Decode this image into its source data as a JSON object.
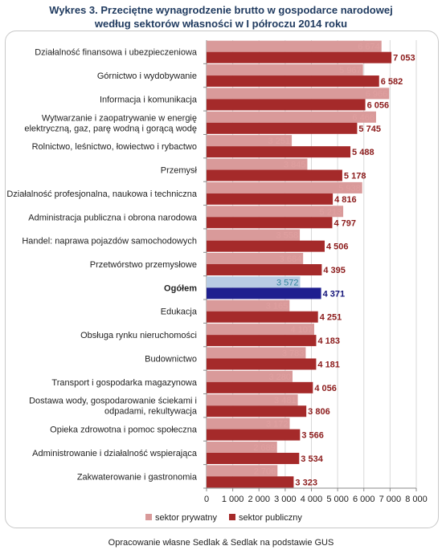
{
  "title": {
    "line1": "Wykres 3. Przeciętne wynagrodzenie brutto w gospodarce narodowej",
    "line2": "według sektorów własności w I półroczu 2014 roku"
  },
  "footer": "Opracowanie własne Sedlak & Sedlak na podstawie GUS",
  "colors": {
    "private": "#d99a9a",
    "public": "#a52a2a",
    "total_private": "#b8cce4",
    "total_public": "#1f1f8f",
    "private_label": "#e0a0a0",
    "public_label": "#8b1a1a",
    "total_private_label": "#31849b",
    "total_public_label": "#14147a"
  },
  "chart_data": {
    "type": "bar",
    "orientation": "horizontal",
    "grid": true,
    "legend_position": "bottom",
    "xlim": [
      0,
      8000
    ],
    "xticks": [
      0,
      1000,
      2000,
      3000,
      4000,
      5000,
      6000,
      7000,
      8000
    ],
    "xtick_labels": [
      "0",
      "1 000",
      "2 000",
      "3 000",
      "4 000",
      "5 000",
      "6 000",
      "7 000",
      "8 000"
    ],
    "categories": [
      [
        "Działalność finansowa i ubezpieczeniowa"
      ],
      [
        "Górnictwo i wydobywanie"
      ],
      [
        "Informacja i komunikacja"
      ],
      [
        "Wytwarzanie i zaopatrywanie w energię",
        "elektryczną, gaz, parę wodną i gorącą wodę"
      ],
      [
        "Rolnictwo, leśnictwo, łowiectwo i rybactwo"
      ],
      [
        "Przemysł"
      ],
      [
        "Działalność profesjonalna, naukowa i techniczna"
      ],
      [
        "Administracja publiczna i obrona narodowa"
      ],
      [
        "Handel: naprawa pojazdów samochodowych"
      ],
      [
        "Przetwórstwo przemysłowe"
      ],
      [
        "Ogółem"
      ],
      [
        "Edukacja"
      ],
      [
        "Obsługa rynku nieruchomości"
      ],
      [
        "Budownictwo"
      ],
      [
        "Transport i gospodarka magazynowa"
      ],
      [
        "Dostawa wody, gospodarowanie ściekami i",
        "odpadami, rekultywacja"
      ],
      [
        "Opieka zdrowotna i pomoc społeczna"
      ],
      [
        "Administrowanie i działalność wspierająca"
      ],
      [
        "Zakwaterowanie i gastronomia"
      ]
    ],
    "highlight_category_index": 10,
    "series": [
      {
        "name": "sektor prywatny",
        "values": [
          6674,
          5967,
          6966,
          6466,
          3251,
          3845,
          5938,
          5213,
          3558,
          3684,
          3572,
          3165,
          4107,
          3783,
          3280,
          3481,
          3172,
          2689,
          2706
        ],
        "labels": [
          "6 674",
          "5 967",
          "6 966",
          "6 466",
          "3 251",
          "3 845",
          "5 938",
          "5 213",
          "3 558",
          "3 684",
          "3 572",
          "3 165",
          "4 107",
          "3 783",
          "3 280",
          "3 481",
          "3 172",
          "2 689",
          "2 706"
        ]
      },
      {
        "name": "sektor publiczny",
        "values": [
          7053,
          6582,
          6056,
          5745,
          5488,
          5178,
          4816,
          4797,
          4506,
          4395,
          4371,
          4251,
          4183,
          4181,
          4056,
          3806,
          3566,
          3534,
          3323
        ],
        "labels": [
          "7 053",
          "6 582",
          "6 056",
          "5 745",
          "5 488",
          "5 178",
          "4 816",
          "4 797",
          "4 506",
          "4 395",
          "4 371",
          "4 251",
          "4 183",
          "4 181",
          "4 056",
          "3 806",
          "3 566",
          "3 534",
          "3 323"
        ]
      }
    ]
  }
}
